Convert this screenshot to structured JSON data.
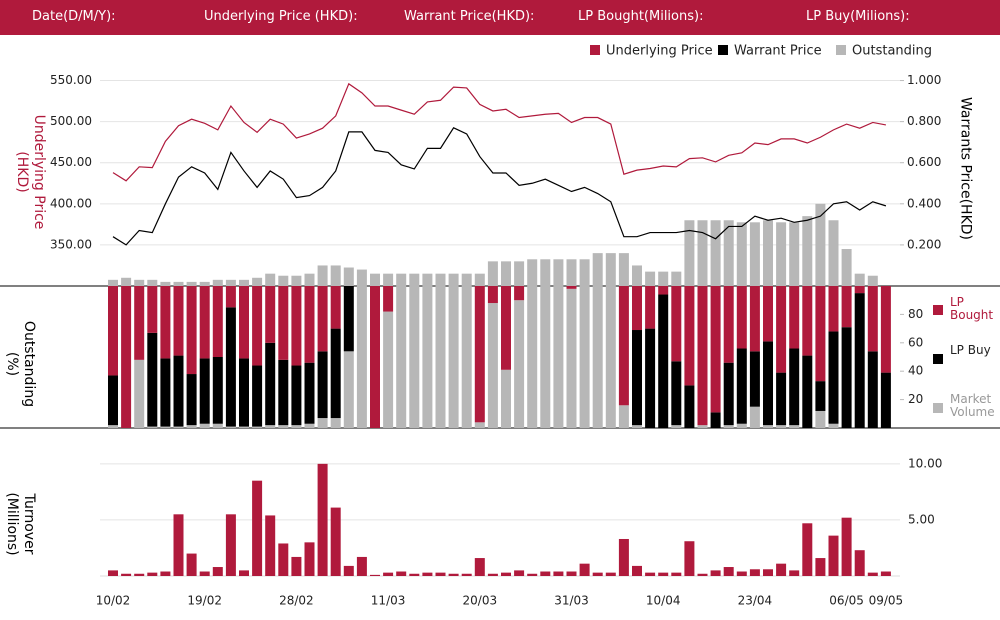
{
  "header": {
    "labels": [
      "Date(D/M/Y):",
      "Underlying Price (HKD):",
      "Warrant  Price(HKD):",
      "LP Bought(Milions):",
      "LP Buy(Milions):"
    ]
  },
  "chart_data": [
    {
      "type": "line",
      "ylabel": "Underlying Price (HKD)",
      "y2label": "Warrants  Price(HKD)",
      "ylim": [
        300,
        575
      ],
      "yticks": [
        {
          "value": 350,
          "label": "350.00"
        },
        {
          "value": 400,
          "label": "400.00"
        },
        {
          "value": 450,
          "label": "450.00"
        },
        {
          "value": 500,
          "label": "500.00"
        },
        {
          "value": 550,
          "label": "550.00"
        }
      ],
      "y2lim": [
        0,
        1.1
      ],
      "y2ticks": [
        {
          "value": 0.2,
          "label": "0.200"
        },
        {
          "value": 0.4,
          "label": "0.400"
        },
        {
          "value": 0.6,
          "label": "0.600"
        },
        {
          "value": 0.8,
          "label": "0.800"
        },
        {
          "value": 1.0,
          "label": "1.000"
        }
      ],
      "grid": true,
      "legend": "top-right",
      "series": [
        {
          "name": "Underlying Price",
          "color": "#b01a3c",
          "values": [
            438,
            428,
            445,
            444,
            476,
            495,
            503,
            498,
            490,
            519,
            499,
            487,
            503,
            497,
            480,
            485,
            492,
            507,
            546,
            535,
            519,
            519,
            514,
            509,
            524,
            526,
            542,
            541,
            521,
            513,
            515,
            505,
            507,
            509,
            510,
            499,
            505,
            505,
            497,
            436,
            441,
            443,
            446,
            445,
            455,
            456,
            451,
            459,
            462,
            474,
            472,
            479,
            479,
            474,
            481,
            490,
            497,
            492,
            499,
            496
          ]
        },
        {
          "name": "Warrant  Price",
          "color": "#000000",
          "axis": "y2",
          "values": [
            0.24,
            0.2,
            0.27,
            0.26,
            0.4,
            0.53,
            0.58,
            0.55,
            0.47,
            0.65,
            0.56,
            0.48,
            0.56,
            0.52,
            0.43,
            0.44,
            0.48,
            0.56,
            0.75,
            0.75,
            0.66,
            0.65,
            0.59,
            0.57,
            0.67,
            0.67,
            0.77,
            0.74,
            0.63,
            0.55,
            0.55,
            0.49,
            0.5,
            0.52,
            0.49,
            0.46,
            0.48,
            0.45,
            0.41,
            0.24,
            0.24,
            0.26,
            0.26,
            0.26,
            0.27,
            0.26,
            0.23,
            0.29,
            0.29,
            0.34,
            0.32,
            0.33,
            0.31,
            0.32,
            0.34,
            0.4,
            0.41,
            0.37,
            0.41,
            0.39
          ]
        },
        {
          "name": "Outstanding",
          "color": "#b7b7b7",
          "axis": "y2",
          "type": "bar",
          "values": [
            0.03,
            0.04,
            0.03,
            0.03,
            0.02,
            0.02,
            0.02,
            0.02,
            0.03,
            0.03,
            0.03,
            0.04,
            0.06,
            0.05,
            0.05,
            0.06,
            0.1,
            0.1,
            0.09,
            0.08,
            0.06,
            0.06,
            0.06,
            0.06,
            0.06,
            0.06,
            0.06,
            0.06,
            0.06,
            0.12,
            0.12,
            0.12,
            0.13,
            0.13,
            0.13,
            0.13,
            0.13,
            0.16,
            0.16,
            0.16,
            0.1,
            0.07,
            0.07,
            0.07,
            0.32,
            0.32,
            0.32,
            0.32,
            0.31,
            0.31,
            0.32,
            0.31,
            0.31,
            0.34,
            0.4,
            0.32,
            0.18,
            0.06,
            0.05,
            0
          ]
        }
      ]
    },
    {
      "type": "stacked_bar",
      "ylabel": "Outstanding (%)",
      "ylim": [
        0,
        100
      ],
      "yticks": [
        20,
        40,
        60,
        80
      ],
      "series": [
        {
          "name": "LP Bought",
          "color": "#b01a3c",
          "values": [
            63,
            100,
            52,
            33,
            51,
            49,
            62,
            51,
            50,
            15,
            51,
            56,
            40,
            52,
            56,
            54,
            46,
            30,
            0,
            0,
            100,
            18,
            0,
            0,
            0,
            0,
            0,
            0,
            96,
            12,
            59,
            10,
            0,
            0,
            0,
            2,
            0,
            0,
            0,
            84,
            31,
            30,
            6,
            53,
            70,
            98,
            89,
            54,
            44,
            46,
            39,
            61,
            44,
            49,
            67,
            32,
            29,
            5,
            46,
            61
          ]
        },
        {
          "name": "LP Buy",
          "color": "#000000",
          "values": [
            35,
            0,
            0,
            66,
            48,
            50,
            36,
            46,
            47,
            84,
            48,
            43,
            58,
            46,
            42,
            43,
            47,
            63,
            46,
            0,
            0,
            0,
            0,
            0,
            0,
            0,
            0,
            0,
            0,
            0,
            0,
            0,
            0,
            0,
            0,
            0,
            0,
            0,
            0,
            0,
            67,
            70,
            94,
            45,
            30,
            0,
            11,
            44,
            53,
            39,
            59,
            37,
            54,
            51,
            21,
            65,
            71,
            95,
            54,
            39
          ]
        },
        {
          "name": "Market Volume",
          "color": "#b7b7b7",
          "values": [
            2,
            0,
            48,
            1,
            1,
            1,
            2,
            3,
            3,
            1,
            1,
            1,
            2,
            2,
            2,
            3,
            7,
            7,
            54,
            100,
            0,
            82,
            100,
            100,
            100,
            100,
            100,
            100,
            4,
            88,
            41,
            90,
            100,
            100,
            100,
            98,
            100,
            100,
            100,
            16,
            2,
            0,
            0,
            2,
            0,
            2,
            0,
            2,
            3,
            15,
            2,
            2,
            2,
            0,
            12,
            3,
            0,
            0,
            0,
            0
          ]
        }
      ]
    },
    {
      "type": "bar",
      "ylabel": "Turnover (Millions)",
      "color": "#b01a3c",
      "ylim": [
        0,
        10.7
      ],
      "yticks": [
        {
          "value": 5,
          "label": "5.00"
        },
        {
          "value": 10,
          "label": "10.00"
        }
      ],
      "grid": true,
      "categories": [
        "10/02",
        null,
        null,
        null,
        null,
        null,
        null,
        "19/02",
        null,
        null,
        null,
        null,
        null,
        null,
        "28/02",
        null,
        null,
        null,
        null,
        null,
        null,
        "11/03",
        null,
        null,
        null,
        null,
        null,
        null,
        "20/03",
        null,
        null,
        null,
        null,
        null,
        null,
        "31/03",
        null,
        null,
        null,
        null,
        null,
        null,
        "10/04",
        null,
        null,
        null,
        null,
        null,
        null,
        "23/04",
        null,
        null,
        null,
        null,
        null,
        null,
        "06/05",
        null,
        null,
        "09/05"
      ],
      "values": [
        0.5,
        0.2,
        0.2,
        0.3,
        0.4,
        5.5,
        2.0,
        0.4,
        0.8,
        5.5,
        0.5,
        8.5,
        5.4,
        2.9,
        1.7,
        3.0,
        10.0,
        6.1,
        0.9,
        1.7,
        0.1,
        0.3,
        0.4,
        0.2,
        0.3,
        0.3,
        0.2,
        0.2,
        1.6,
        0.2,
        0.3,
        0.5,
        0.2,
        0.4,
        0.4,
        0.4,
        1.1,
        0.3,
        0.3,
        3.3,
        0.9,
        0.3,
        0.3,
        0.3,
        3.1,
        0.2,
        0.5,
        0.8,
        0.4,
        0.6,
        0.6,
        1.1,
        0.5,
        4.7,
        1.6,
        3.6,
        5.2,
        2.3,
        0.3,
        0.4
      ]
    }
  ]
}
